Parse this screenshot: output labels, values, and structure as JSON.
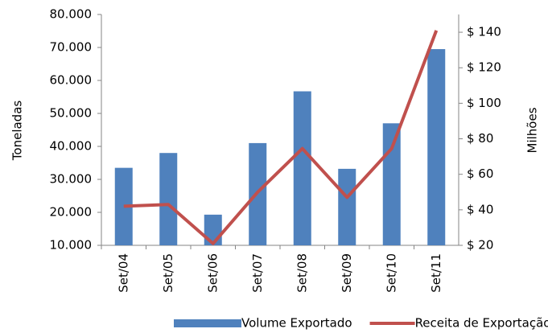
{
  "chart_data": {
    "type": "bar",
    "categories": [
      "Set/04",
      "Set/05",
      "Set/06",
      "Set/07",
      "Set/08",
      "Set/09",
      "Set/10",
      "Set/11"
    ],
    "y_label": "Toneladas",
    "y2_label": "Milhões",
    "series": [
      {
        "name": "Volume Exportado",
        "type": "bar",
        "color": "#4f81bd",
        "values": [
          33500,
          38000,
          19300,
          41000,
          56700,
          33200,
          47000,
          69500
        ]
      },
      {
        "name": "Receita de Exportação",
        "type": "line",
        "axis": "y2",
        "color": "#c0504d",
        "values": [
          42,
          43,
          21,
          50,
          74.5,
          47,
          74.5,
          141
        ]
      }
    ],
    "ylim": [
      10000,
      80000
    ],
    "yticks": [
      {
        "value": 10000,
        "label": "10.000"
      },
      {
        "value": 20000,
        "label": "20.000"
      },
      {
        "value": 30000,
        "label": "30.000"
      },
      {
        "value": 40000,
        "label": "40.000"
      },
      {
        "value": 50000,
        "label": "50.000"
      },
      {
        "value": 60000,
        "label": "60.000"
      },
      {
        "value": 70000,
        "label": "70.000"
      },
      {
        "value": 80000,
        "label": "80.000"
      }
    ],
    "y2lim": [
      20,
      150
    ],
    "y2ticks": [
      {
        "value": 20,
        "label": "$ 20"
      },
      {
        "value": 40,
        "label": "$ 40"
      },
      {
        "value": 60,
        "label": "$ 60"
      },
      {
        "value": 80,
        "label": "$ 80"
      },
      {
        "value": 100,
        "label": "$ 100"
      },
      {
        "value": 120,
        "label": "$ 120"
      },
      {
        "value": 140,
        "label": "$ 140"
      }
    ],
    "grid": false
  }
}
